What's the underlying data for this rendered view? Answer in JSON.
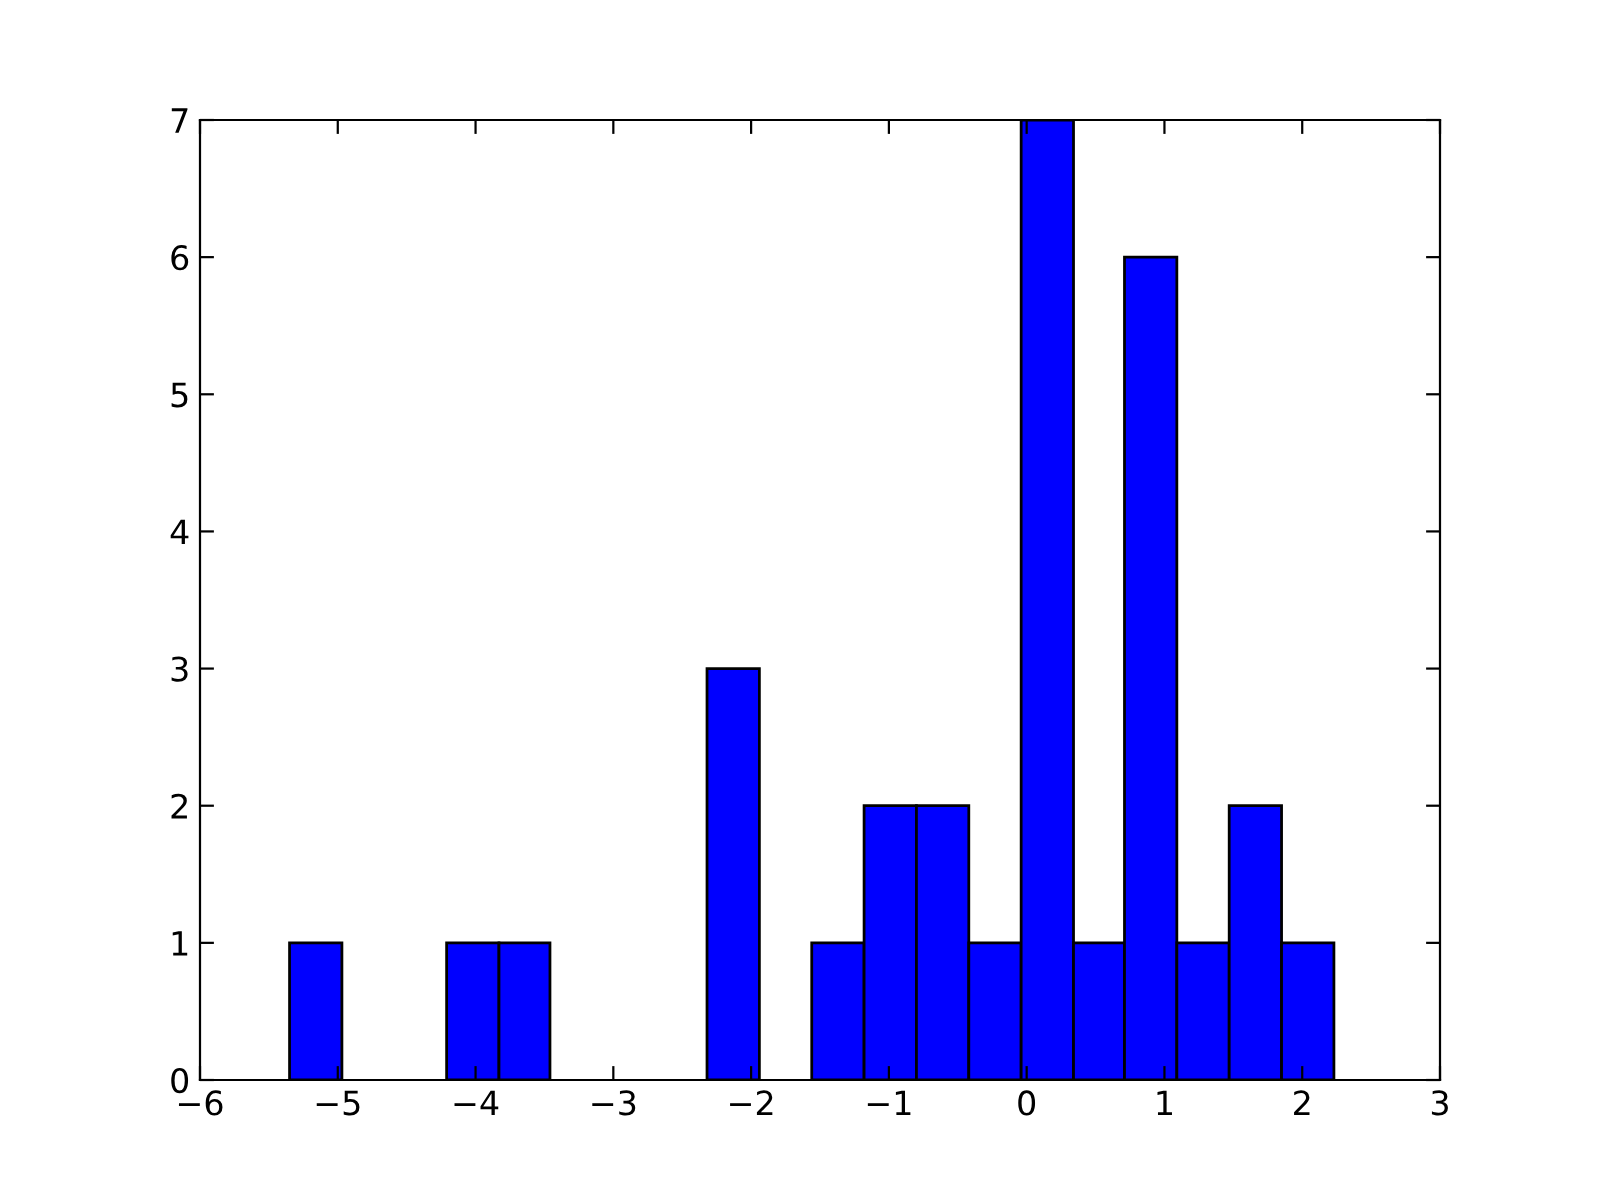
{
  "chart_data": {
    "type": "histogram",
    "bins": [
      -5.35,
      -4.97,
      -4.21,
      -3.83,
      -3.46,
      -2.32,
      -1.94,
      -1.56,
      -1.18,
      -0.8,
      -0.42,
      -0.04,
      0.34,
      0.71,
      1.09,
      1.47,
      1.85,
      2.23
    ],
    "values": [
      1,
      0,
      1,
      1,
      0,
      3,
      0,
      1,
      2,
      2,
      1,
      7,
      1,
      6,
      1,
      2,
      1
    ],
    "color": "#0000ff",
    "xlim": [
      -6,
      3
    ],
    "xticks": [
      -6,
      -5,
      -4,
      -3,
      -2,
      -1,
      0,
      1,
      2,
      3
    ],
    "ylim": [
      0,
      7
    ],
    "yticks": [
      0,
      1,
      2,
      3,
      4,
      5,
      6,
      7
    ],
    "grid": false
  }
}
